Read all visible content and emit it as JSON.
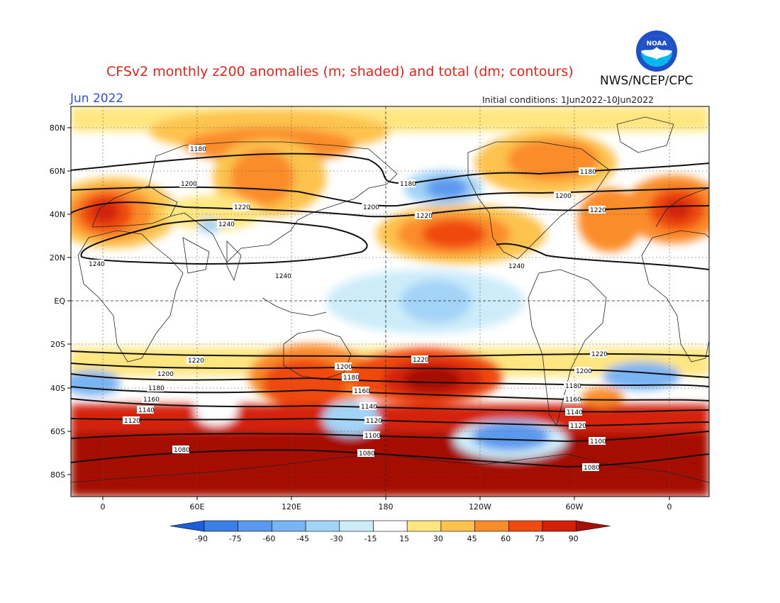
{
  "header": {
    "title": "CFSv2 monthly z200 anomalies (m; shaded) and total (dm; contours)",
    "org": "NWS/NCEP/CPC",
    "month": "Jun 2022",
    "initial_conditions": "Initial conditions: 1Jun2022-10Jun2022",
    "logo_text": "NOAA"
  },
  "axes": {
    "lat_labels": [
      "80N",
      "60N",
      "40N",
      "20N",
      "EQ",
      "20S",
      "40S",
      "60S",
      "80S"
    ],
    "lon_labels": [
      "0",
      "60E",
      "120E",
      "180",
      "120W",
      "60W",
      "0"
    ]
  },
  "colorbar": {
    "ticks": [
      "-90",
      "-75",
      "-60",
      "-45",
      "-30",
      "-15",
      "15",
      "30",
      "45",
      "60",
      "75",
      "90"
    ],
    "colors": [
      "#1c5fd8",
      "#3b7fe6",
      "#5a99ee",
      "#7ab4f3",
      "#a3d3f7",
      "#ccecf9",
      "#ffffff",
      "#ffe680",
      "#fdc34e",
      "#fb8c2a",
      "#f04a10",
      "#d4200a",
      "#a50f04"
    ]
  },
  "contour_labels": [
    "1240",
    "1220",
    "1200",
    "1180",
    "1160",
    "1140",
    "1120",
    "1100",
    "1080"
  ],
  "chart_data": {
    "type": "heatmap",
    "title": "CFSv2 monthly z200 anomalies (m; shaded) and total (dm; contours)",
    "contour_levels_dm": [
      1080,
      1100,
      1120,
      1140,
      1160,
      1180,
      1200,
      1220,
      1240
    ],
    "shading_levels_m": [
      -90,
      -75,
      -60,
      -45,
      -30,
      -15,
      15,
      30,
      45,
      60,
      75,
      90
    ]
  }
}
